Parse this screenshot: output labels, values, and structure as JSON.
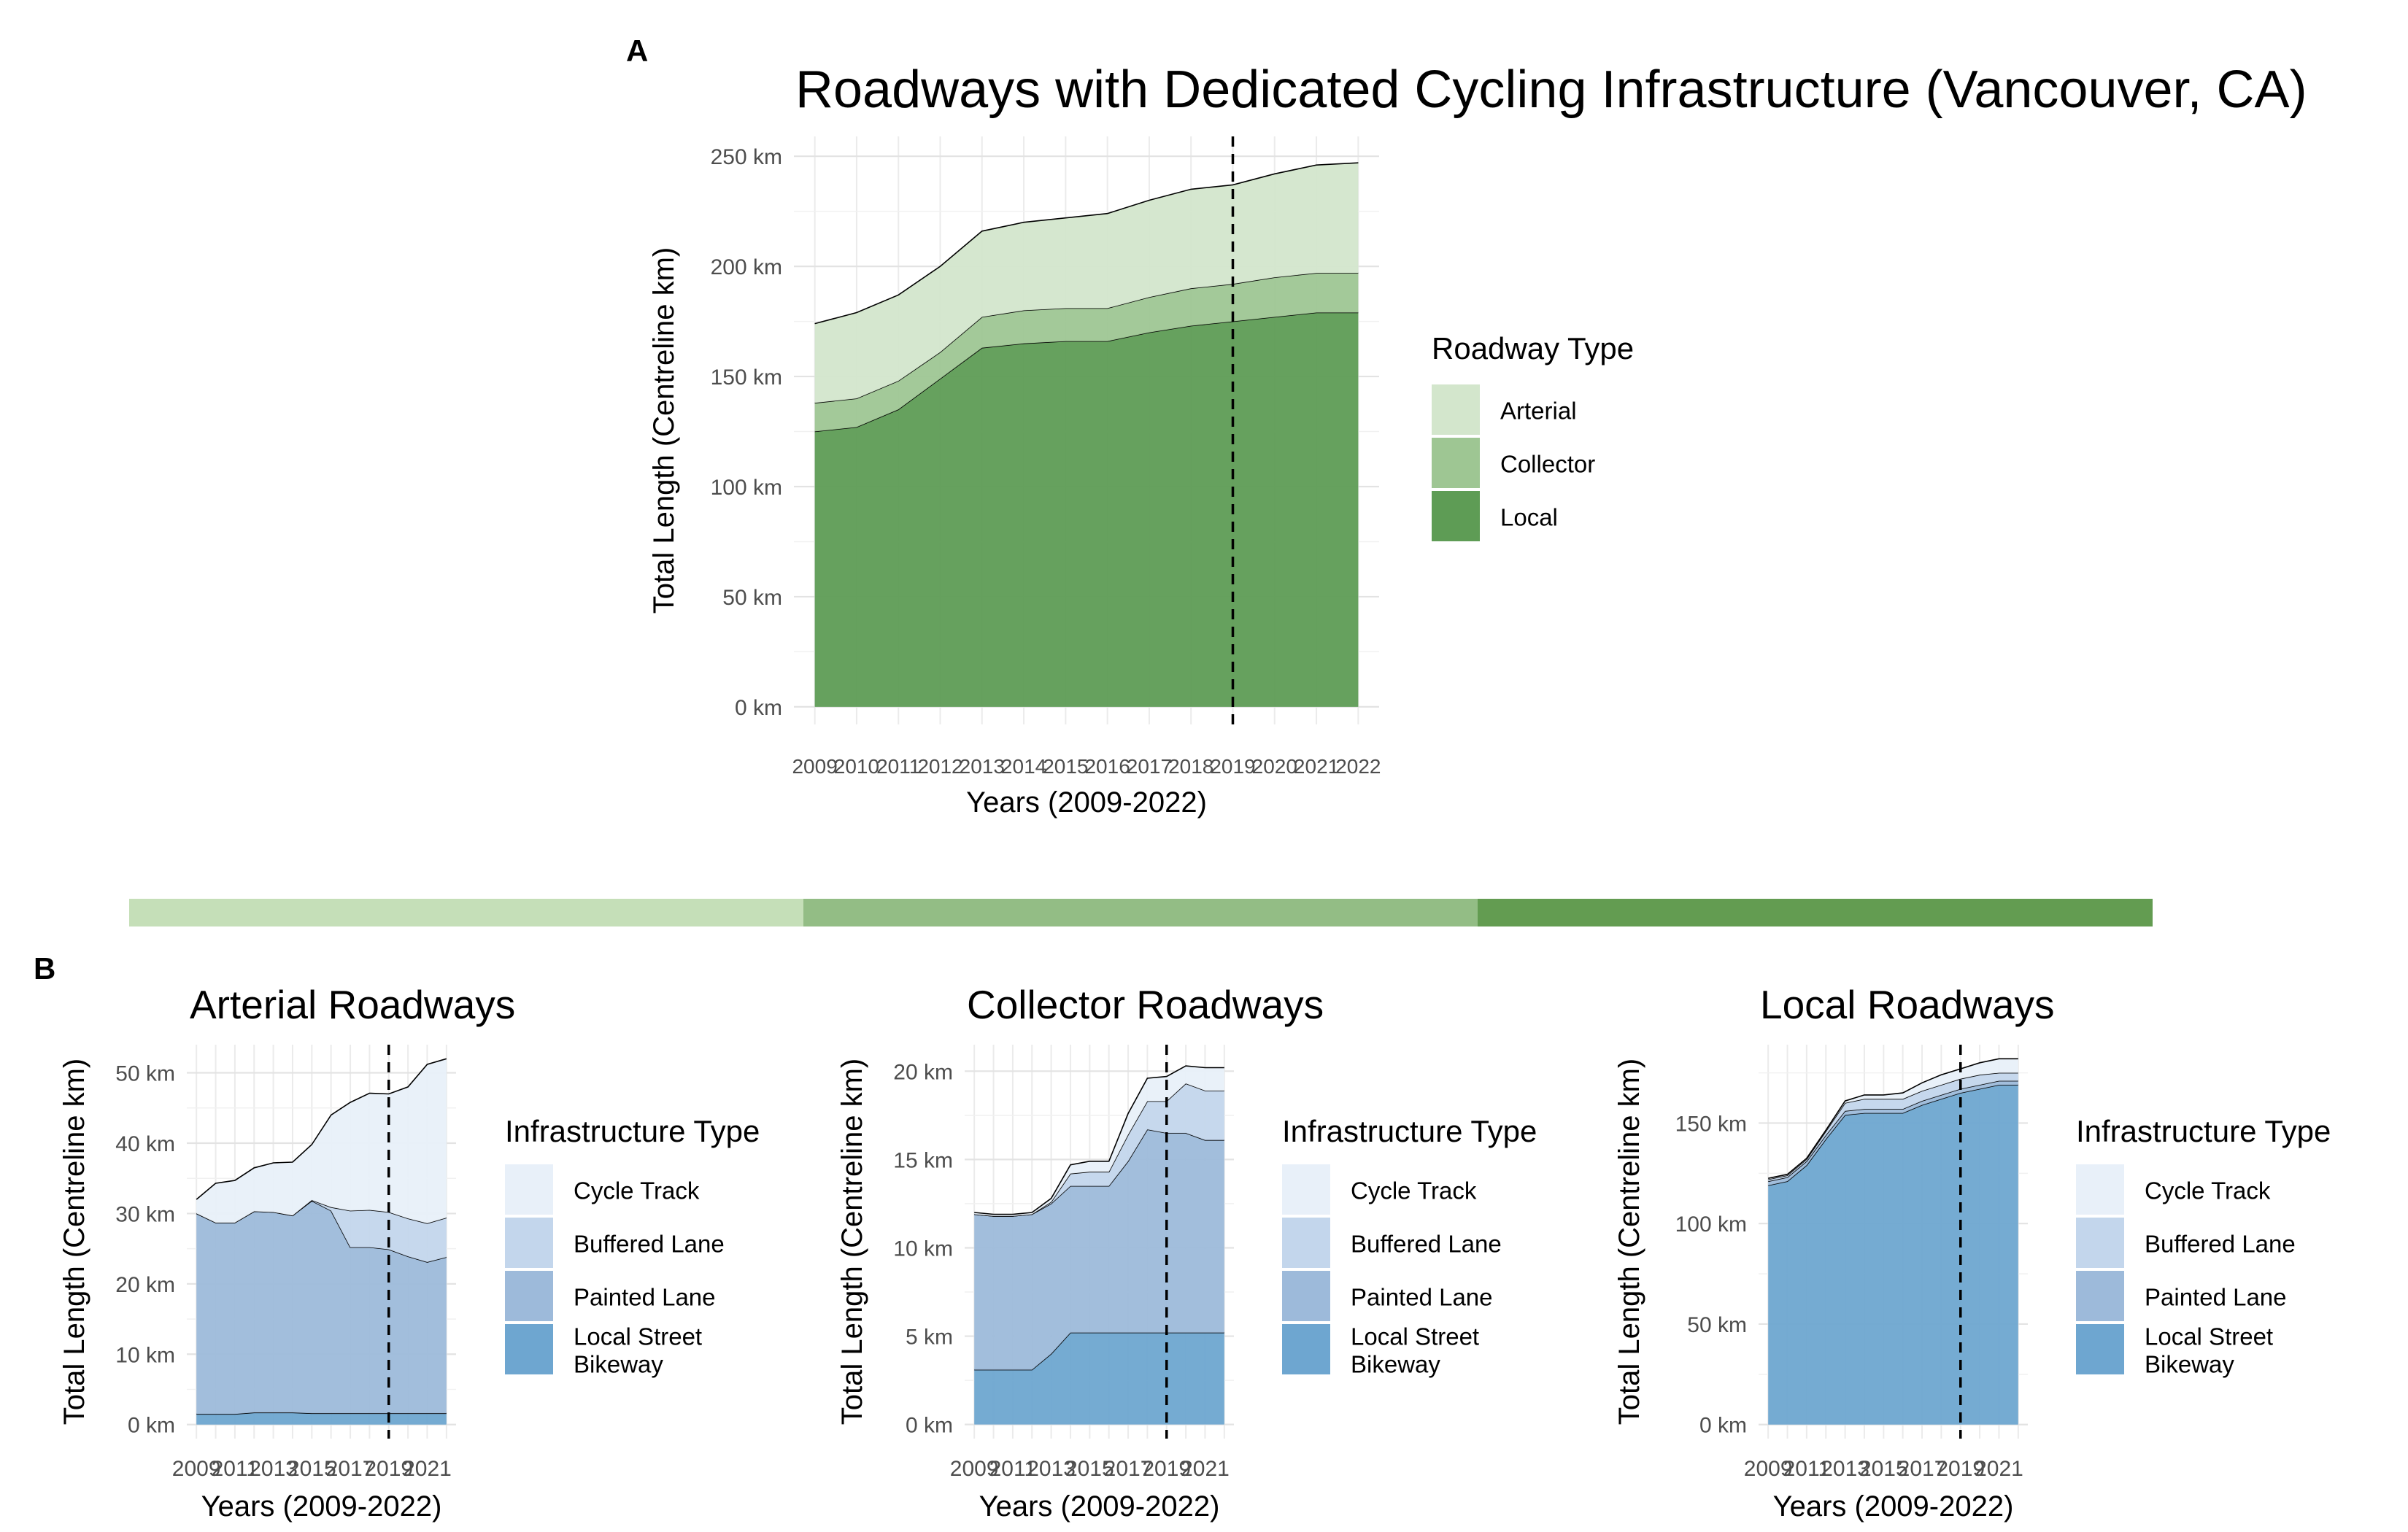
{
  "tags": {
    "A": "A",
    "B": "B"
  },
  "colors": {
    "green_light": "#d3e6cc",
    "green_mid": "#9ec693",
    "green_dark": "#5e9c55",
    "blue_1": "#e8f0f9",
    "blue_2": "#c3d6ec",
    "blue_3": "#9dbada",
    "blue_4": "#6ea6d0",
    "bar": [
      "#c5dfb8",
      "#93bd85",
      "#639c51"
    ]
  },
  "chart_data": [
    {
      "id": "total",
      "type": "area",
      "stacked": true,
      "title": "Roadways with Dedicated Cycling Infrastructure (Vancouver, CA)",
      "xlabel": "Years (2009-2022)",
      "ylabel": "Total Length (Centreline km)",
      "x": [
        2009,
        2010,
        2011,
        2012,
        2013,
        2014,
        2015,
        2016,
        2017,
        2018,
        2019,
        2020,
        2021,
        2022
      ],
      "x_tick_labels": [
        "2009",
        "2010",
        "2011",
        "2012",
        "2013",
        "2014",
        "2015",
        "2016",
        "2017",
        "2018",
        "2019",
        "2020",
        "2021",
        "2022"
      ],
      "xlim": [
        2008.5,
        2022.5
      ],
      "ylim": [
        -8,
        259
      ],
      "y_ticks": [
        0,
        50,
        100,
        150,
        200,
        250
      ],
      "y_tick_labels": [
        "0 km",
        "50 km",
        "100 km",
        "150 km",
        "200 km",
        "250 km"
      ],
      "vline_x": 2019,
      "grid": true,
      "legend_title": "Roadway Type",
      "legend_position": "right",
      "legend": [
        "Arterial",
        "Collector",
        "Local"
      ],
      "series": [
        {
          "name": "Local",
          "values": [
            125,
            127,
            135,
            149,
            163,
            165,
            166,
            166,
            170,
            173,
            175,
            177,
            179,
            179
          ]
        },
        {
          "name": "Collector",
          "values": [
            13,
            13,
            13,
            12,
            14,
            15,
            15,
            15,
            16,
            17,
            17,
            18,
            18,
            18
          ]
        },
        {
          "name": "Arterial",
          "values": [
            36,
            39,
            39,
            39,
            39,
            40,
            41,
            43,
            44,
            45,
            45,
            47,
            49,
            50
          ]
        }
      ]
    },
    {
      "id": "arterial",
      "type": "area",
      "stacked": true,
      "title": "Arterial Roadways",
      "xlabel": "Years (2009-2022)",
      "ylabel": "Total Length (Centreline km)",
      "x": [
        2009,
        2010,
        2011,
        2012,
        2013,
        2014,
        2015,
        2016,
        2017,
        2018,
        2019,
        2020,
        2021,
        2022
      ],
      "x_tick_labels": [
        "2009",
        "2011",
        "2013",
        "2015",
        "2017",
        "2019",
        "2021"
      ],
      "x_ticks": [
        2009,
        2011,
        2013,
        2015,
        2017,
        2019,
        2021
      ],
      "xlim": [
        2008.5,
        2022.5
      ],
      "ylim": [
        -2,
        54
      ],
      "y_ticks": [
        0,
        10,
        20,
        30,
        40,
        50
      ],
      "y_tick_labels": [
        "0 km",
        "10 km",
        "20 km",
        "30 km",
        "40 km",
        "50 km"
      ],
      "vline_x": 2019,
      "grid": true,
      "legend_title": "Infrastructure Type",
      "legend_position": "right",
      "legend": [
        "Cycle Track",
        "Buffered Lane",
        "Painted Lane",
        "Local Street Bikeway"
      ],
      "series": [
        {
          "name": "Local Street Bikeway",
          "values": [
            1.5,
            1.5,
            1.5,
            1.7,
            1.7,
            1.7,
            1.6,
            1.6,
            1.6,
            1.6,
            1.6,
            1.6,
            1.6,
            1.6
          ]
        },
        {
          "name": "Painted Lane",
          "values": [
            28.5,
            27.2,
            27.2,
            28.6,
            28.5,
            28.0,
            30.2,
            28.8,
            23.6,
            23.6,
            23.3,
            22.3,
            21.5,
            22.2
          ]
        },
        {
          "name": "Buffered Lane",
          "values": [
            0,
            0,
            0,
            0,
            0,
            0,
            0.1,
            0.5,
            5.2,
            5.3,
            5.3,
            5.4,
            5.5,
            5.6
          ]
        },
        {
          "name": "Cycle Track",
          "values": [
            2,
            5.6,
            6,
            6.2,
            7,
            7.6,
            7.9,
            13.1,
            15.4,
            16.6,
            16.8,
            18.7,
            22.6,
            22.6
          ]
        }
      ]
    },
    {
      "id": "collector",
      "type": "area",
      "stacked": true,
      "title": "Collector Roadways",
      "xlabel": "Years (2009-2022)",
      "ylabel": "Total Length (Centreline km)",
      "x": [
        2009,
        2010,
        2011,
        2012,
        2013,
        2014,
        2015,
        2016,
        2017,
        2018,
        2019,
        2020,
        2021,
        2022
      ],
      "x_tick_labels": [
        "2009",
        "2011",
        "2013",
        "2015",
        "2017",
        "2019",
        "2021"
      ],
      "x_ticks": [
        2009,
        2011,
        2013,
        2015,
        2017,
        2019,
        2021
      ],
      "xlim": [
        2008.5,
        2022.5
      ],
      "ylim": [
        -0.8,
        21.5
      ],
      "y_ticks": [
        0,
        5,
        10,
        15,
        20
      ],
      "y_tick_labels": [
        "0 km",
        "5 km",
        "10 km",
        "15 km",
        "20 km"
      ],
      "vline_x": 2019,
      "grid": true,
      "legend_title": "Infrastructure Type",
      "legend_position": "right",
      "legend": [
        "Cycle Track",
        "Buffered Lane",
        "Painted Lane",
        "Local Street Bikeway"
      ],
      "series": [
        {
          "name": "Local Street Bikeway",
          "values": [
            3.1,
            3.1,
            3.1,
            3.1,
            4.0,
            5.2,
            5.2,
            5.2,
            5.2,
            5.2,
            5.2,
            5.2,
            5.2,
            5.2
          ]
        },
        {
          "name": "Painted Lane",
          "values": [
            8.8,
            8.7,
            8.7,
            8.8,
            8.5,
            8.3,
            8.3,
            8.3,
            9.7,
            11.5,
            11.3,
            11.3,
            10.9,
            10.9
          ]
        },
        {
          "name": "Buffered Lane",
          "values": [
            0,
            0,
            0,
            0,
            0.1,
            0.7,
            0.8,
            0.8,
            1.5,
            1.6,
            1.8,
            2.8,
            2.8,
            2.8
          ]
        },
        {
          "name": "Cycle Track",
          "values": [
            0.1,
            0.1,
            0.1,
            0.1,
            0.2,
            0.5,
            0.6,
            0.6,
            1.2,
            1.3,
            1.4,
            1.0,
            1.3,
            1.3
          ]
        }
      ]
    },
    {
      "id": "local",
      "type": "area",
      "stacked": true,
      "title": "Local Roadways",
      "xlabel": "Years (2009-2022)",
      "ylabel": "Total Length (Centreline km)",
      "x": [
        2009,
        2010,
        2011,
        2012,
        2013,
        2014,
        2015,
        2016,
        2017,
        2018,
        2019,
        2020,
        2021,
        2022
      ],
      "x_tick_labels": [
        "2009",
        "2011",
        "2013",
        "2015",
        "2017",
        "2019",
        "2021"
      ],
      "x_ticks": [
        2009,
        2011,
        2013,
        2015,
        2017,
        2019,
        2021
      ],
      "xlim": [
        2008.5,
        2022.5
      ],
      "ylim": [
        -7,
        189
      ],
      "y_ticks": [
        0,
        50,
        100,
        150
      ],
      "y_tick_labels": [
        "0 km",
        "50 km",
        "100 km",
        "150 km"
      ],
      "vline_x": 2019,
      "grid": true,
      "legend_title": "Infrastructure Type",
      "legend_position": "right",
      "legend": [
        "Cycle Track",
        "Buffered Lane",
        "Painted Lane",
        "Local Street Bikeway"
      ],
      "series": [
        {
          "name": "Local Street Bikeway",
          "values": [
            119,
            121,
            129,
            142,
            154,
            155,
            155,
            155,
            159,
            162,
            165,
            167,
            169,
            169
          ]
        },
        {
          "name": "Painted Lane",
          "values": [
            2,
            2,
            2,
            2,
            2,
            2,
            2,
            2,
            2,
            2,
            2,
            2,
            2,
            2
          ]
        },
        {
          "name": "Buffered Lane",
          "values": [
            1,
            1,
            1,
            2,
            4,
            5,
            5,
            5,
            5,
            5,
            5,
            5,
            4,
            4
          ]
        },
        {
          "name": "Cycle Track",
          "values": [
            0.5,
            0.5,
            0.5,
            0.5,
            1,
            2,
            2,
            3,
            4,
            5,
            5,
            6,
            7,
            7
          ]
        }
      ]
    }
  ]
}
